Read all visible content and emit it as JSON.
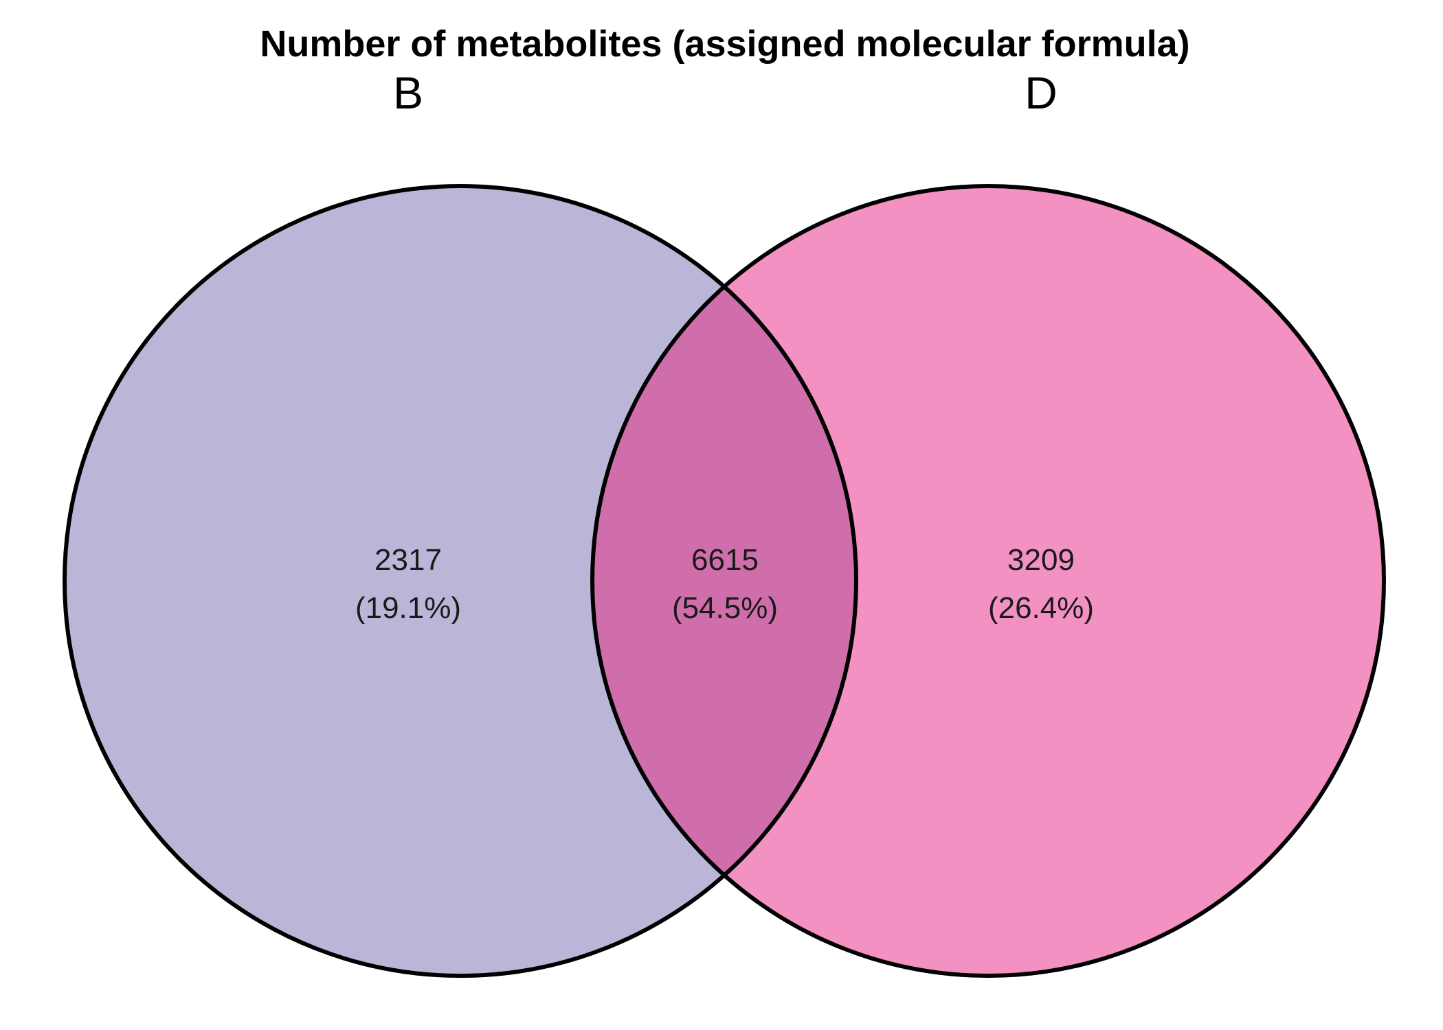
{
  "title": "Number of metabolites (assigned molecular formula)",
  "sets": [
    {
      "label": "B",
      "color": "#bab6d8"
    },
    {
      "label": "D",
      "color": "#f391c2"
    }
  ],
  "intersection_color": "#d06eac",
  "outline_color": "#000000",
  "regions": {
    "b_only": {
      "count": "2317",
      "percent": "(19.1%)"
    },
    "both": {
      "count": "6615",
      "percent": "(54.5%)"
    },
    "d_only": {
      "count": "3209",
      "percent": "(26.4%)"
    }
  }
}
